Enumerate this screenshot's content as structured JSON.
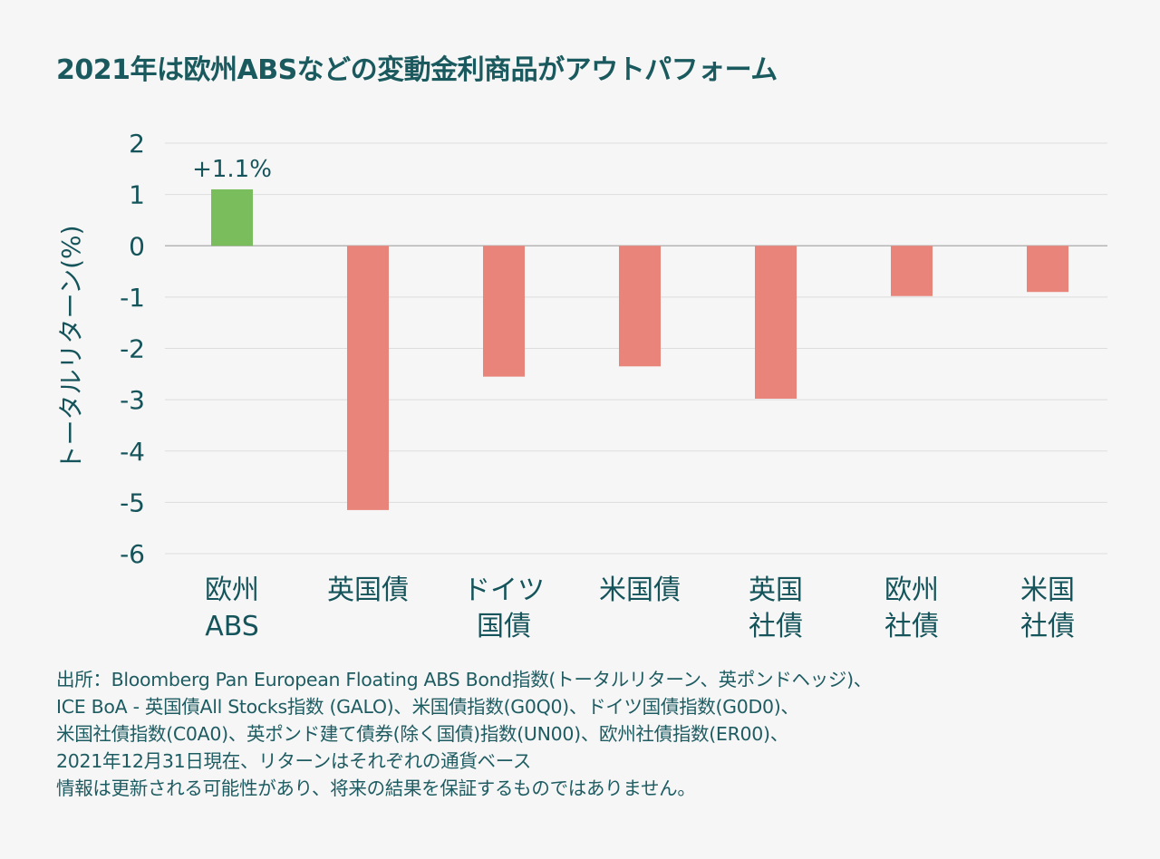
{
  "title": "2021年は欧州ABSなどの変動金利商品がアウトパフォーム",
  "chart_data": {
    "type": "bar",
    "ylabel": "トータルリターン(%)",
    "ylim": [
      -6,
      2
    ],
    "yticks": [
      "2",
      "1",
      "0",
      "-1",
      "-2",
      "-3",
      "-4",
      "-5",
      "-6"
    ],
    "grid": true,
    "categories": [
      [
        "欧州",
        "ABS"
      ],
      [
        "英国債"
      ],
      [
        "ドイツ",
        "国債"
      ],
      [
        "米国債"
      ],
      [
        "英国",
        "社債"
      ],
      [
        "欧州",
        "社債"
      ],
      [
        "米国",
        "社債"
      ]
    ],
    "values": [
      1.1,
      -5.15,
      -2.55,
      -2.35,
      -2.98,
      -0.98,
      -0.9
    ],
    "data_labels": [
      "+1.1%",
      "",
      "",
      "",
      "",
      "",
      ""
    ],
    "colors": {
      "positive": "#7abd5c",
      "negative": "#e8847a",
      "grid": "#dddddd",
      "zero_line": "#b5b5b5",
      "text": "#14545a"
    }
  },
  "notes": [
    "出所：Bloomberg Pan European Floating ABS Bond指数(トータルリターン、英ポンドヘッジ)、",
    "ICE BoA - 英国債All Stocks指数 (GALO)、米国債指数(G0Q0)、ドイツ国債指数(G0D0)、",
    "米国社債指数(C0A0)、英ポンド建て債券(除く国債)指数(UN00)、欧州社債指数(ER00)、",
    "2021年12月31日現在、リターンはそれぞれの通貨ベース",
    "情報は更新される可能性があり、将来の結果を保証するものではありません。"
  ]
}
